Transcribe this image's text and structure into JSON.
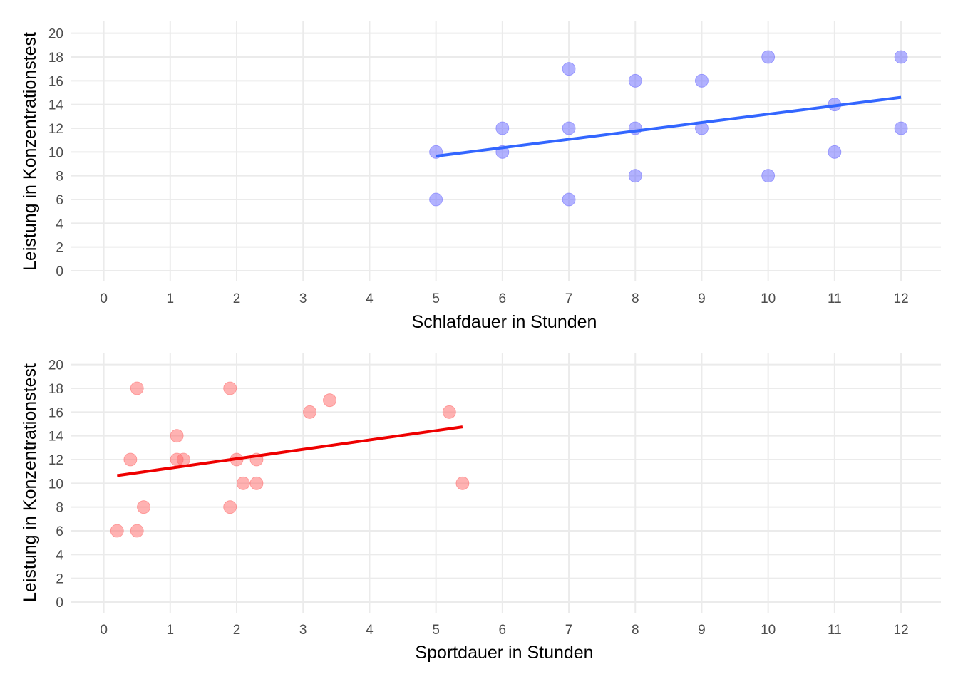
{
  "chart_data": [
    {
      "type": "scatter",
      "xlabel": "Schlafdauer in Stunden",
      "ylabel": "Leistung in Konzentrationstest",
      "xlim": [
        -0.5,
        12.6
      ],
      "ylim": [
        -0.9,
        21.0
      ],
      "x_ticks": [
        0,
        1,
        2,
        3,
        4,
        5,
        6,
        7,
        8,
        9,
        10,
        11,
        12
      ],
      "y_ticks": [
        0,
        2,
        4,
        6,
        8,
        10,
        12,
        14,
        16,
        18,
        20
      ],
      "grid": true,
      "points": {
        "color": "#6666ff",
        "x": [
          5,
          5,
          6,
          6,
          7,
          7,
          7,
          8,
          8,
          8,
          9,
          9,
          10,
          10,
          11,
          11,
          12,
          12
        ],
        "y": [
          10,
          6,
          12,
          10,
          17,
          12,
          6,
          16,
          12,
          8,
          16,
          12,
          18,
          8,
          14,
          10,
          18,
          12
        ]
      },
      "trend_line": {
        "color": "#3366ff",
        "x": [
          5,
          12
        ],
        "y": [
          9.65,
          14.6
        ]
      }
    },
    {
      "type": "scatter",
      "xlabel": "Sportdauer in Stunden",
      "ylabel": "Leistung in Konzentrationstest",
      "xlim": [
        -0.5,
        12.6
      ],
      "ylim": [
        -0.9,
        21.0
      ],
      "x_ticks": [
        0,
        1,
        2,
        3,
        4,
        5,
        6,
        7,
        8,
        9,
        10,
        11,
        12
      ],
      "y_ticks": [
        0,
        2,
        4,
        6,
        8,
        10,
        12,
        14,
        16,
        18,
        20
      ],
      "grid": true,
      "points": {
        "color": "#ff6666",
        "x": [
          0.2,
          0.5,
          0.5,
          0.4,
          0.6,
          1.1,
          1.1,
          1.2,
          1.9,
          1.9,
          2.0,
          2.1,
          2.3,
          2.3,
          3.1,
          3.4,
          5.2,
          5.4
        ],
        "y": [
          6,
          6,
          18,
          12,
          8,
          14,
          12,
          12,
          18,
          8,
          12,
          10,
          12,
          10,
          16,
          17,
          16,
          10
        ]
      },
      "trend_line": {
        "color": "#ee0000",
        "x": [
          0.2,
          5.4
        ],
        "y": [
          10.65,
          14.75
        ]
      }
    }
  ]
}
